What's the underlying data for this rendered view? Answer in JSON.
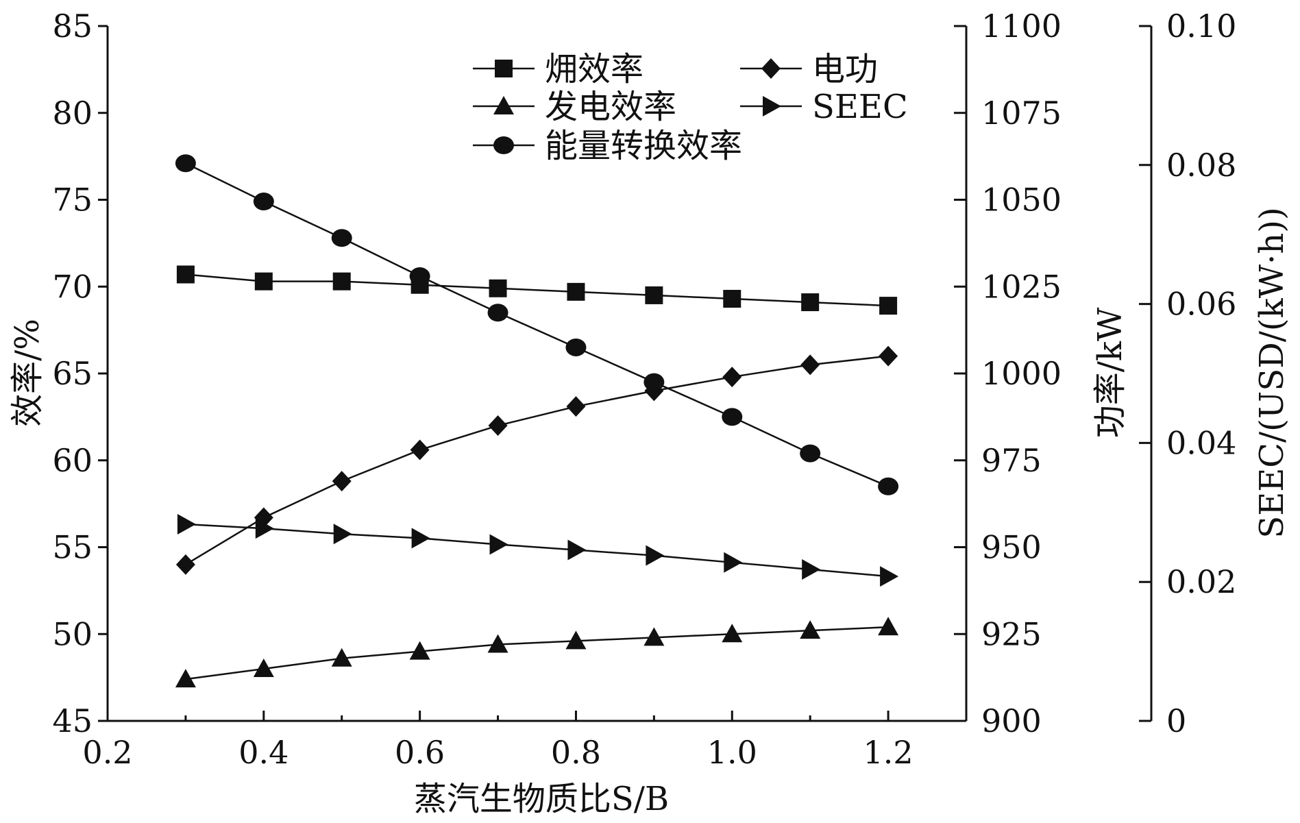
{
  "chart_data": {
    "type": "line",
    "xlabel": "蒸汽生物质比S/B",
    "ylabel": "效率/%",
    "y2label": "功率/kW",
    "y3label": "SEEC/(USD/(kW·h))",
    "x": [
      0.3,
      0.4,
      0.5,
      0.6,
      0.7,
      0.8,
      0.9,
      1.0,
      1.1,
      1.2
    ],
    "xlim": [
      0.2,
      1.3
    ],
    "xticks": [
      "0.2",
      "0.4",
      "0.6",
      "0.8",
      "1.0",
      "1.2"
    ],
    "ylim": [
      45,
      85
    ],
    "yticks": [
      "45",
      "50",
      "55",
      "60",
      "65",
      "70",
      "75",
      "80",
      "85"
    ],
    "y2lim": [
      900,
      1100
    ],
    "y2ticks": [
      "900",
      "925",
      "950",
      "975",
      "1000",
      "1025",
      "1050",
      "1075",
      "1100"
    ],
    "y3lim": [
      0,
      0.1
    ],
    "y3ticks": [
      "0",
      "0.02",
      "0.04",
      "0.06",
      "0.08",
      "0.10"
    ],
    "grid": false,
    "legend_position": "top-right",
    "series": [
      {
        "name": "㶲效率",
        "axis": "left",
        "marker": "square",
        "values": [
          70.7,
          70.3,
          70.3,
          70.1,
          69.9,
          69.7,
          69.5,
          69.3,
          69.1,
          68.9
        ]
      },
      {
        "name": "电功",
        "axis": "right",
        "marker": "diamond",
        "values": [
          945,
          958.5,
          969,
          978,
          985,
          990.5,
          995,
          999,
          1002.5,
          1005
        ]
      },
      {
        "name": "发电效率",
        "axis": "left",
        "marker": "triangle-up",
        "values": [
          47.4,
          48.0,
          48.6,
          49.0,
          49.4,
          49.6,
          49.8,
          50.0,
          50.2,
          50.4
        ]
      },
      {
        "name": "SEEC",
        "axis": "right2",
        "marker": "triangle-right",
        "values": [
          0.0283,
          0.0277,
          0.0269,
          0.0263,
          0.0254,
          0.0246,
          0.0238,
          0.0228,
          0.0218,
          0.0208
        ]
      },
      {
        "name": "能量转换效率",
        "axis": "left",
        "marker": "circle",
        "values": [
          77.1,
          74.9,
          72.8,
          70.6,
          68.5,
          66.5,
          64.5,
          62.5,
          60.4,
          58.5
        ]
      }
    ]
  }
}
